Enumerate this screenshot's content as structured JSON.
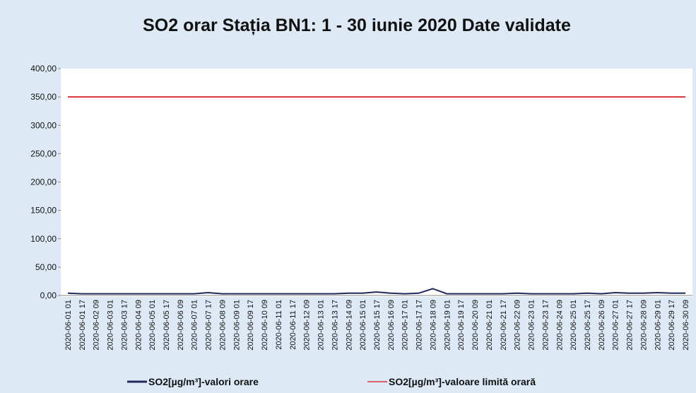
{
  "chart_data": {
    "type": "line",
    "title": "SO2 orar Stația BN1: 1 - 30 iunie 2020 Date validate",
    "categories": [
      "2020-06-01 01",
      "2020-06-01 17",
      "2020-06-02 09",
      "2020-06-03 01",
      "2020-06-03 17",
      "2020-06-04 09",
      "2020-06-05 01",
      "2020-06-05 17",
      "2020-06-06 09",
      "2020-06-07 01",
      "2020-06-07 17",
      "2020-06-08 09",
      "2020-06-09 01",
      "2020-06-09 17",
      "2020-06-10 09",
      "2020-06-11 01",
      "2020-06-11 17",
      "2020-06-12 09",
      "2020-06-13 01",
      "2020-06-13 17",
      "2020-06-14 09",
      "2020-06-15 01",
      "2020-06-15 17",
      "2020-06-16 09",
      "2020-06-17 01",
      "2020-06-17 17",
      "2020-06-18 09",
      "2020-06-19 01",
      "2020-06-19 17",
      "2020-06-20 09",
      "2020-06-21 01",
      "2020-06-21 17",
      "2020-06-22 09",
      "2020-06-23 01",
      "2020-06-23 17",
      "2020-06-24 09",
      "2020-06-25 01",
      "2020-06-25 17",
      "2020-06-26 09",
      "2020-06-27 01",
      "2020-06-27 17",
      "2020-06-28 09",
      "2020-06-29 01",
      "2020-06-29 17",
      "2020-06-30 09"
    ],
    "series": [
      {
        "name": "SO2[µg/m³]-valori orare",
        "color": "#1f2a5a",
        "values": [
          4,
          3,
          3,
          3,
          3,
          3,
          3,
          3,
          3,
          3,
          5,
          3,
          3,
          3,
          3,
          3,
          3,
          3,
          3,
          3,
          4,
          4,
          6,
          4,
          3,
          4,
          12,
          3,
          3,
          3,
          3,
          3,
          4,
          3,
          3,
          3,
          3,
          4,
          3,
          5,
          4,
          4,
          5,
          4,
          4
        ]
      },
      {
        "name": "SO2[µg/m³]-valoare limită orară",
        "color": "#d9333a",
        "values": [
          350,
          350,
          350,
          350,
          350,
          350,
          350,
          350,
          350,
          350,
          350,
          350,
          350,
          350,
          350,
          350,
          350,
          350,
          350,
          350,
          350,
          350,
          350,
          350,
          350,
          350,
          350,
          350,
          350,
          350,
          350,
          350,
          350,
          350,
          350,
          350,
          350,
          350,
          350,
          350,
          350,
          350,
          350,
          350,
          350
        ]
      }
    ],
    "ylim": [
      0,
      400
    ],
    "yticks": [
      {
        "value": 0,
        "label": "0,00"
      },
      {
        "value": 50,
        "label": "50,00"
      },
      {
        "value": 100,
        "label": "100,00"
      },
      {
        "value": 150,
        "label": "150,00"
      },
      {
        "value": 200,
        "label": "200,00"
      },
      {
        "value": 250,
        "label": "250,00"
      },
      {
        "value": 300,
        "label": "300,00"
      },
      {
        "value": 350,
        "label": "350,00"
      },
      {
        "value": 400,
        "label": "400,00"
      }
    ],
    "legend": "bottom"
  }
}
